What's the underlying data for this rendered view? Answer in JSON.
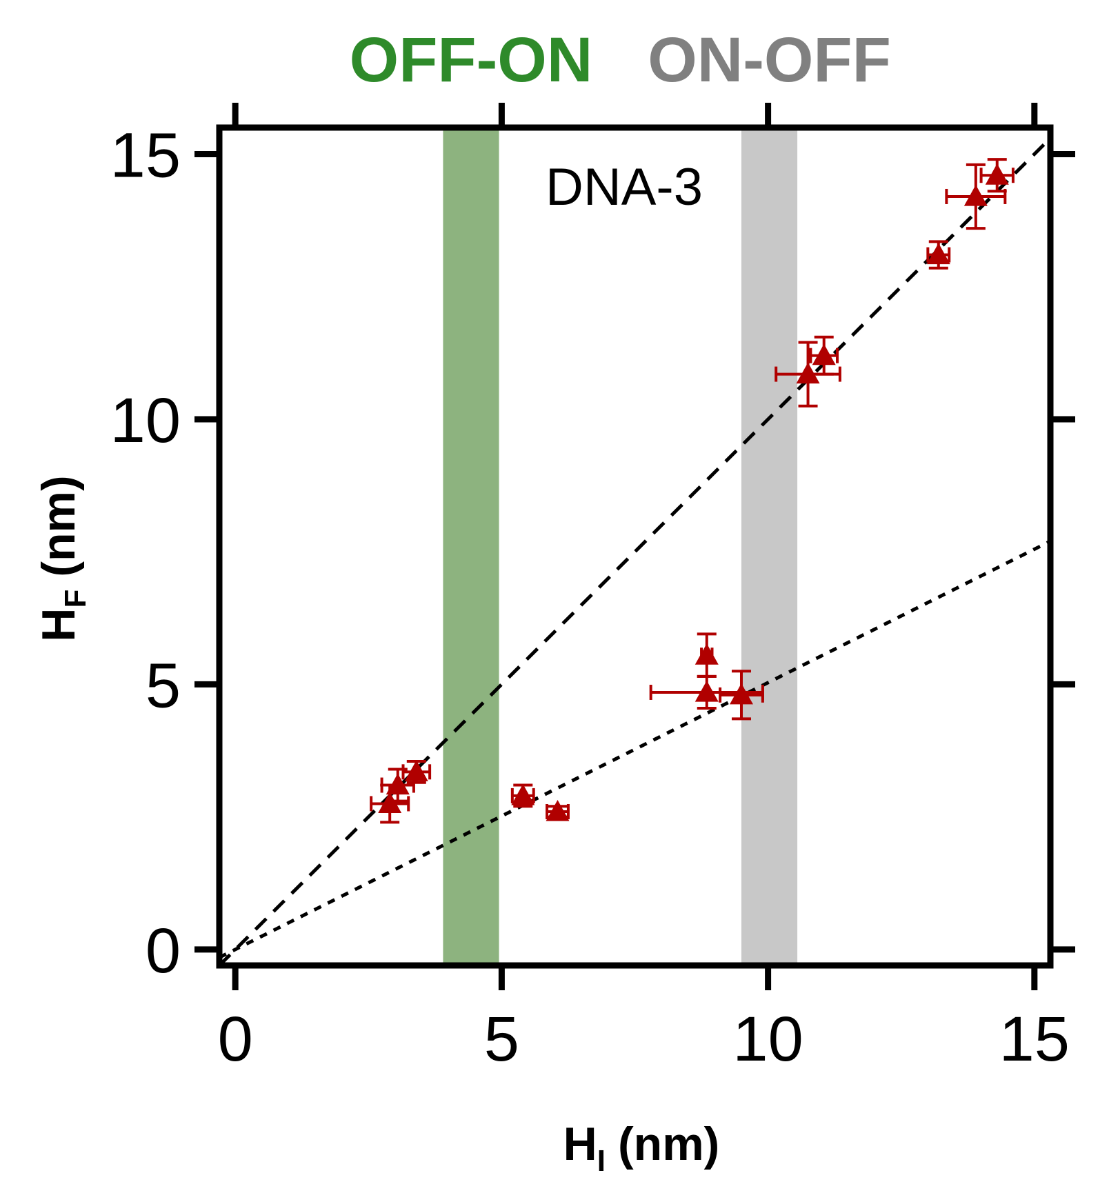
{
  "chart_data": {
    "type": "scatter",
    "title": "DNA-3",
    "xlabel": {
      "main": "H",
      "sub": "I",
      "unit": "(nm)"
    },
    "ylabel": {
      "main": "H",
      "sub": "F",
      "unit": "(nm)"
    },
    "xlim": [
      -0.3,
      15.3
    ],
    "ylim": [
      -0.3,
      15.5
    ],
    "xticks": [
      0,
      5,
      10,
      15
    ],
    "yticks": [
      0,
      5,
      10,
      15
    ],
    "bands": [
      {
        "label": "OFF-ON",
        "x0": 3.9,
        "x1": 4.95,
        "color": "#8db37f",
        "label_color": "#2e8a2a"
      },
      {
        "label": "ON-OFF",
        "x0": 9.5,
        "x1": 10.55,
        "color": "#c8c8c8",
        "label_color": "#808080"
      }
    ],
    "fit_lines": [
      {
        "name": "dashed fit",
        "style": "dashed",
        "x": [
          -0.3,
          15.3
        ],
        "y": [
          -0.3,
          15.3
        ]
      },
      {
        "name": "dotted fit",
        "style": "dotted",
        "x": [
          -0.3,
          15.3
        ],
        "y": [
          -0.15,
          7.7
        ]
      }
    ],
    "series": [
      {
        "name": "DNA-3 data",
        "marker": "triangle",
        "color": "#b00000",
        "points": [
          {
            "x": 2.9,
            "y": 2.75,
            "xerr": 0.35,
            "yerr": 0.35
          },
          {
            "x": 3.05,
            "y": 3.1,
            "xerr": 0.3,
            "yerr": 0.3
          },
          {
            "x": 3.4,
            "y": 3.35,
            "xerr": 0.25,
            "yerr": 0.2
          },
          {
            "x": 5.4,
            "y": 2.9,
            "xerr": 0.2,
            "yerr": 0.2
          },
          {
            "x": 6.05,
            "y": 2.6,
            "xerr": 0.2,
            "yerr": 0.1
          },
          {
            "x": 8.85,
            "y": 5.55,
            "xerr": 0.1,
            "yerr": 0.4
          },
          {
            "x": 8.85,
            "y": 4.85,
            "xerr": 1.05,
            "yerr": 0.3
          },
          {
            "x": 9.5,
            "y": 4.8,
            "xerr": 0.4,
            "yerr": 0.45
          },
          {
            "x": 10.75,
            "y": 10.85,
            "xerr": 0.6,
            "yerr": 0.6
          },
          {
            "x": 11.05,
            "y": 11.2,
            "xerr": 0.25,
            "yerr": 0.35
          },
          {
            "x": 13.2,
            "y": 13.1,
            "xerr": 0.2,
            "yerr": 0.25
          },
          {
            "x": 13.9,
            "y": 14.2,
            "xerr": 0.55,
            "yerr": 0.6
          },
          {
            "x": 14.3,
            "y": 14.6,
            "xerr": 0.3,
            "yerr": 0.3
          }
        ]
      }
    ]
  }
}
